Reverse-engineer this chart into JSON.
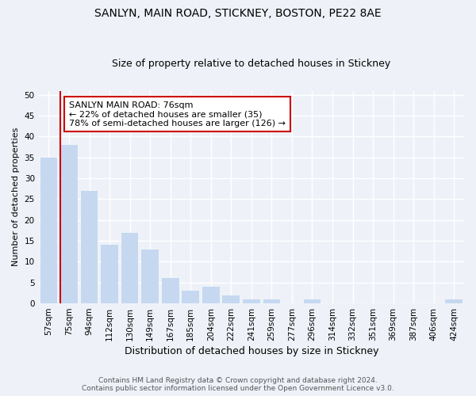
{
  "title1": "SANLYN, MAIN ROAD, STICKNEY, BOSTON, PE22 8AE",
  "title2": "Size of property relative to detached houses in Stickney",
  "xlabel": "Distribution of detached houses by size in Stickney",
  "ylabel": "Number of detached properties",
  "categories": [
    "57sqm",
    "75sqm",
    "94sqm",
    "112sqm",
    "130sqm",
    "149sqm",
    "167sqm",
    "185sqm",
    "204sqm",
    "222sqm",
    "241sqm",
    "259sqm",
    "277sqm",
    "296sqm",
    "314sqm",
    "332sqm",
    "351sqm",
    "369sqm",
    "387sqm",
    "406sqm",
    "424sqm"
  ],
  "values": [
    35,
    38,
    27,
    14,
    17,
    13,
    6,
    3,
    4,
    2,
    1,
    1,
    0,
    1,
    0,
    0,
    0,
    0,
    0,
    0,
    1
  ],
  "bar_color": "#c5d8f0",
  "vline_color": "#cc0000",
  "vline_x_index": 1,
  "annotation_text": "SANLYN MAIN ROAD: 76sqm\n← 22% of detached houses are smaller (35)\n78% of semi-detached houses are larger (126) →",
  "annotation_box_facecolor": "white",
  "annotation_box_edgecolor": "#cc0000",
  "ylim": [
    0,
    51
  ],
  "yticks": [
    0,
    5,
    10,
    15,
    20,
    25,
    30,
    35,
    40,
    45,
    50
  ],
  "footer1": "Contains HM Land Registry data © Crown copyright and database right 2024.",
  "footer2": "Contains public sector information licensed under the Open Government Licence v3.0.",
  "bg_color": "#eef2f8",
  "grid_color": "white",
  "title1_fontsize": 10,
  "title2_fontsize": 9,
  "ylabel_fontsize": 8,
  "xlabel_fontsize": 9,
  "tick_fontsize": 7.5,
  "annotation_fontsize": 8,
  "footer_fontsize": 6.5
}
